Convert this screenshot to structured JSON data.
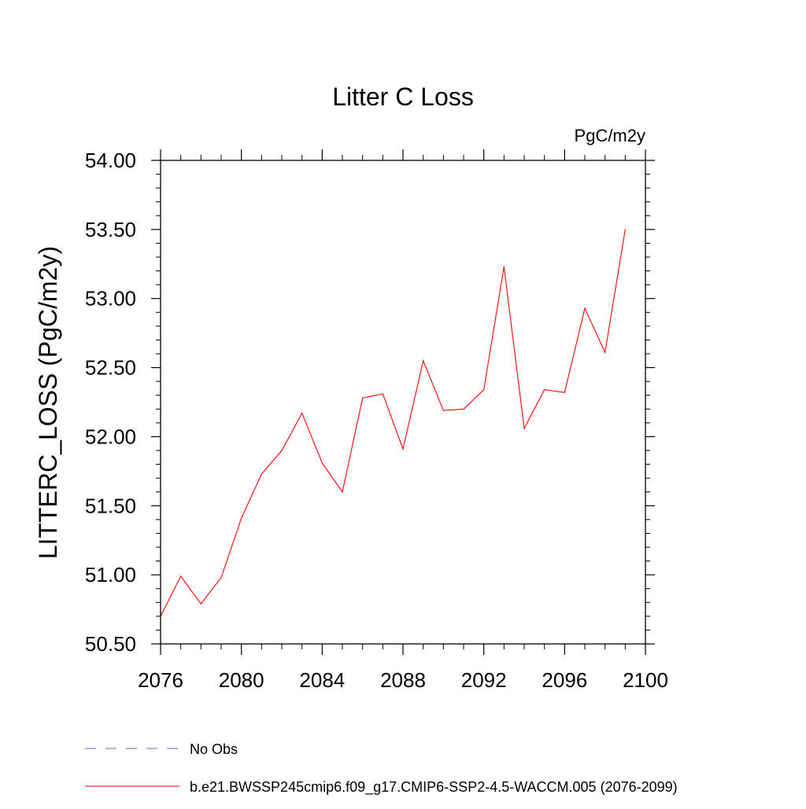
{
  "chart_data": {
    "type": "line",
    "title": "Litter C Loss",
    "units_label": "PgC/m2y",
    "xlabel": "",
    "ylabel": "LITTERC_LOSS  (PgC/m2y)",
    "xlim": [
      2076,
      2100
    ],
    "ylim": [
      50.5,
      54.0
    ],
    "x_ticks": [
      2076,
      2080,
      2084,
      2088,
      2092,
      2096,
      2100
    ],
    "y_ticks": [
      "50.50",
      "51.00",
      "51.50",
      "52.00",
      "52.50",
      "53.00",
      "53.50",
      "54.00"
    ],
    "x": [
      2076,
      2077,
      2078,
      2079,
      2080,
      2081,
      2082,
      2083,
      2084,
      2085,
      2086,
      2087,
      2088,
      2089,
      2090,
      2091,
      2092,
      2093,
      2094,
      2095,
      2096,
      2097,
      2098,
      2099
    ],
    "series": [
      {
        "name": "b.e21.BWSSP245cmip6.f09_g17.CMIP6-SSP2-4.5-WACCM.005 (2076-2099)",
        "color": "#ff0000",
        "values": [
          50.7,
          50.99,
          50.79,
          50.98,
          51.41,
          51.73,
          51.9,
          52.17,
          51.81,
          51.6,
          52.28,
          52.31,
          51.91,
          52.55,
          52.19,
          52.2,
          52.34,
          53.23,
          52.06,
          52.34,
          52.32,
          52.93,
          52.61,
          53.5
        ]
      }
    ],
    "legend": [
      {
        "label": "No Obs",
        "color": "#6666cc",
        "style": "dashed"
      },
      {
        "label": "b.e21.BWSSP245cmip6.f09_g17.CMIP6-SSP2-4.5-WACCM.005 (2076-2099)",
        "color": "#ff0000",
        "style": "solid"
      }
    ],
    "legend_position": "bottom-left",
    "grid": false
  }
}
